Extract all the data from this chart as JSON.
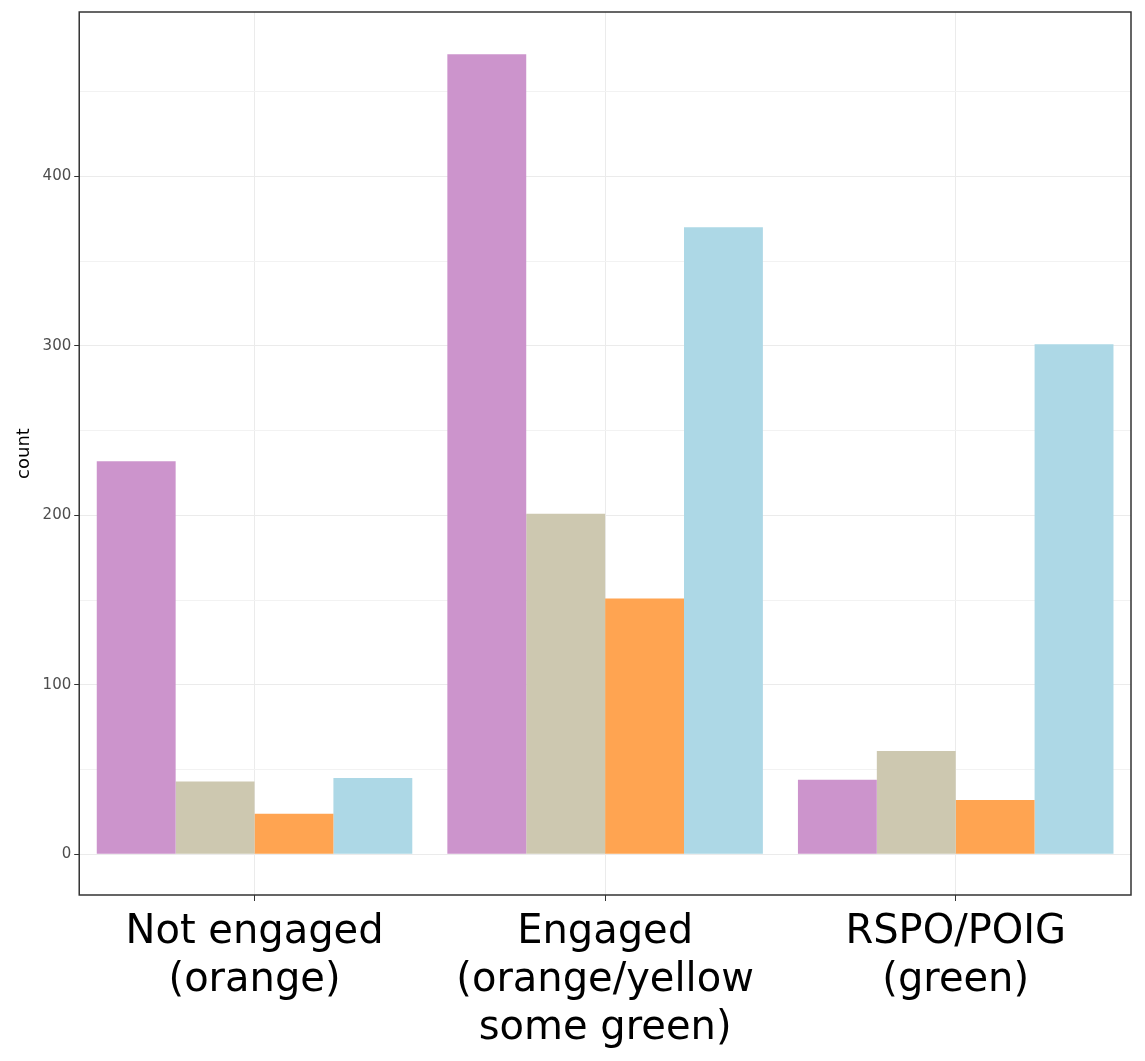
{
  "chart_data": {
    "type": "bar",
    "ylabel": "count",
    "categories": [
      "Not engaged\n(orange)",
      "Engaged\n(orange/yellow\nsome green)",
      "RSPO/POIG\n(green)"
    ],
    "series": [
      {
        "color": "#cc94cc",
        "values": [
          232,
          472,
          44
        ]
      },
      {
        "color": "#cdc8b0",
        "values": [
          43,
          201,
          61
        ]
      },
      {
        "color": "#ffa451",
        "values": [
          24,
          151,
          32
        ]
      },
      {
        "color": "#add8e6",
        "values": [
          45,
          370,
          301
        ]
      }
    ],
    "ylim": [
      -24,
      497
    ],
    "yticks": [
      0,
      {
        "value": 50,
        "label": null
      },
      100,
      {
        "value": 150,
        "label": null
      },
      200,
      {
        "value": 250,
        "label": null
      },
      300,
      {
        "value": 350,
        "label": null
      },
      400,
      {
        "value": 450,
        "label": null
      }
    ],
    "grid": true
  }
}
